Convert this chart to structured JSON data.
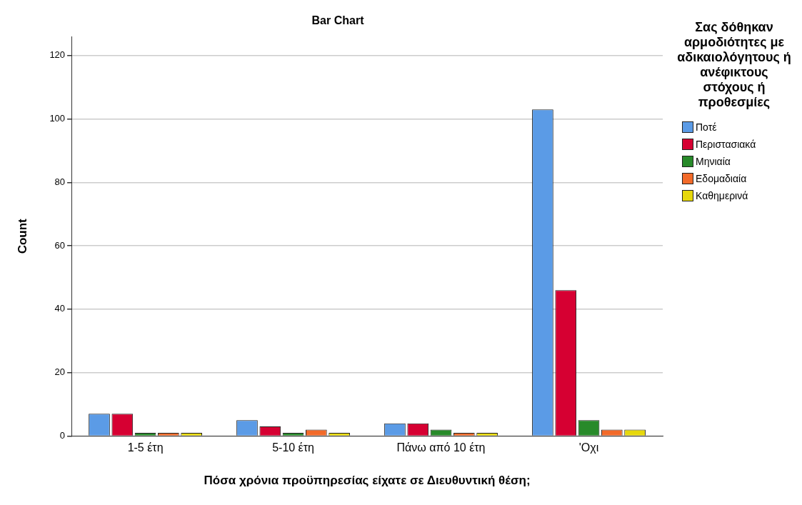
{
  "chart_data": {
    "type": "bar",
    "title": "Bar Chart",
    "xlabel": "Πόσα χρόνια προϋπηρεσίας είχατε σε Διευθυντική θέση;",
    "ylabel": "Count",
    "legend_title": "Σας δόθηκαν αρμοδιότητες με αδικαιολόγητους ή ανέφικτους στόχους ή προθεσμίες",
    "categories": [
      "1-5 έτη",
      "5-10 έτη",
      "Πάνω από 10 έτη",
      "'Οχι"
    ],
    "series": [
      {
        "name": "Ποτέ",
        "color": "#5b9be6",
        "values": [
          7,
          5,
          4,
          103
        ]
      },
      {
        "name": "Περιστασιακά",
        "color": "#d60032",
        "values": [
          7,
          3,
          4,
          46
        ]
      },
      {
        "name": "Μηνιαία",
        "color": "#288a2a",
        "values": [
          1,
          1,
          2,
          5
        ]
      },
      {
        "name": "Εδομαδιαία",
        "color": "#f26a2a",
        "values": [
          1,
          2,
          1,
          2
        ]
      },
      {
        "name": "Καθημερινά",
        "color": "#e6d80c",
        "values": [
          1,
          1,
          1,
          2
        ]
      }
    ],
    "ylim": [
      0,
      126
    ],
    "yticks": [
      0,
      20,
      40,
      60,
      80,
      100,
      120
    ],
    "grid": "y",
    "legend": "right"
  }
}
